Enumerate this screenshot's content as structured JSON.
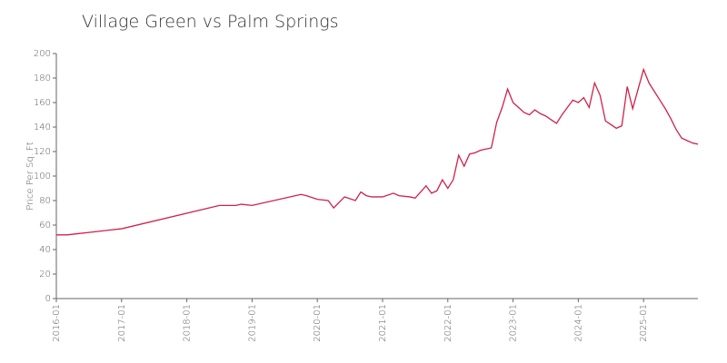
{
  "chart_data": {
    "type": "line",
    "title": "Village Green vs Palm Springs",
    "y_label": "Price Per Sq. Ft",
    "x": [
      "2016-01",
      "2016-03",
      "2016-05",
      "2016-07",
      "2016-09",
      "2016-11",
      "2017-01",
      "2018-07",
      "2018-10",
      "2018-11",
      "2019-01",
      "2019-10",
      "2019-11",
      "2020-01",
      "2020-03",
      "2020-04",
      "2020-06",
      "2020-08",
      "2020-09",
      "2020-10",
      "2020-11",
      "2021-01",
      "2021-03",
      "2021-04",
      "2021-06",
      "2021-07",
      "2021-09",
      "2021-10",
      "2021-11",
      "2021-12",
      "2022-01",
      "2022-02",
      "2022-03",
      "2022-04",
      "2022-05",
      "2022-06",
      "2022-07",
      "2022-08",
      "2022-09",
      "2022-10",
      "2022-11",
      "2022-12",
      "2023-01",
      "2023-02",
      "2023-03",
      "2023-04",
      "2023-05",
      "2023-06",
      "2023-07",
      "2023-08",
      "2023-09",
      "2023-10",
      "2023-11",
      "2023-12",
      "2024-01",
      "2024-02",
      "2024-03",
      "2024-04",
      "2024-05",
      "2024-06",
      "2024-07",
      "2024-08",
      "2024-09",
      "2024-10",
      "2024-11",
      "2024-12",
      "2025-01",
      "2025-02",
      "2025-03",
      "2025-04",
      "2025-05",
      "2025-06",
      "2025-07",
      "2025-08",
      "2025-09",
      "2025-10",
      "2025-11"
    ],
    "series": [
      {
        "color": "#d0214a",
        "values": [
          52,
          52,
          53,
          54,
          55,
          56,
          57,
          76,
          76,
          77,
          76,
          85,
          84,
          81,
          80,
          74,
          83,
          80,
          87,
          84,
          83,
          83,
          86,
          84,
          83,
          82,
          92,
          86,
          88,
          97,
          90,
          97,
          117,
          108,
          118,
          119,
          121,
          122,
          123,
          144,
          156,
          171,
          160,
          156,
          152,
          150,
          154,
          151,
          149,
          146,
          143,
          150,
          156,
          162,
          160,
          164,
          156,
          176,
          166,
          145,
          142,
          139,
          141,
          173,
          155,
          171,
          187,
          176,
          169,
          162,
          155,
          147,
          138,
          131,
          129,
          127,
          126
        ]
      }
    ],
    "xlim": [
      "2016-01",
      "2025-11"
    ],
    "xticks": [
      "2016-01",
      "2017-01",
      "2018-01",
      "2019-01",
      "2020-01",
      "2021-01",
      "2022-01",
      "2023-01",
      "2024-01",
      "2025-01"
    ],
    "ylim": [
      0,
      200
    ],
    "yticks": [
      0,
      20,
      40,
      60,
      80,
      100,
      120,
      140,
      160,
      180,
      200
    ]
  }
}
